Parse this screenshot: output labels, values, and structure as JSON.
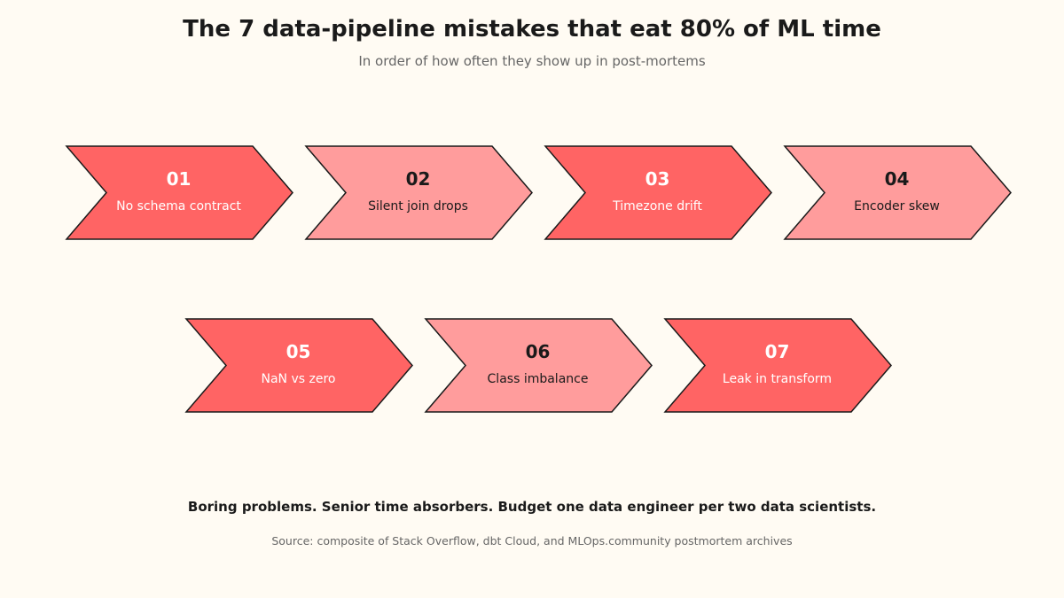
{
  "header": {
    "title": "The 7 data-pipeline mistakes that eat 80% of ML time",
    "subtitle": "In order of how often they show up in post-mortems"
  },
  "colors": {
    "dark_fill": "#ff6464",
    "light_fill": "#ff9c9c",
    "dark_text": "#ffffff",
    "light_text": "#1a1a1a",
    "stroke": "#1a1a1a"
  },
  "steps": [
    {
      "number": "01",
      "label": "No schema contract",
      "tone": "dark"
    },
    {
      "number": "02",
      "label": "Silent join drops",
      "tone": "light"
    },
    {
      "number": "03",
      "label": "Timezone drift",
      "tone": "dark"
    },
    {
      "number": "04",
      "label": "Encoder skew",
      "tone": "light"
    },
    {
      "number": "05",
      "label": "NaN vs zero",
      "tone": "dark"
    },
    {
      "number": "06",
      "label": "Class imbalance",
      "tone": "light"
    },
    {
      "number": "07",
      "label": "Leak in transform",
      "tone": "dark"
    }
  ],
  "footer": {
    "takeaway": "Boring problems. Senior time absorbers. Budget one data engineer per two data scientists.",
    "source": "Source: composite of Stack Overflow, dbt Cloud, and MLOps.community postmortem archives"
  }
}
